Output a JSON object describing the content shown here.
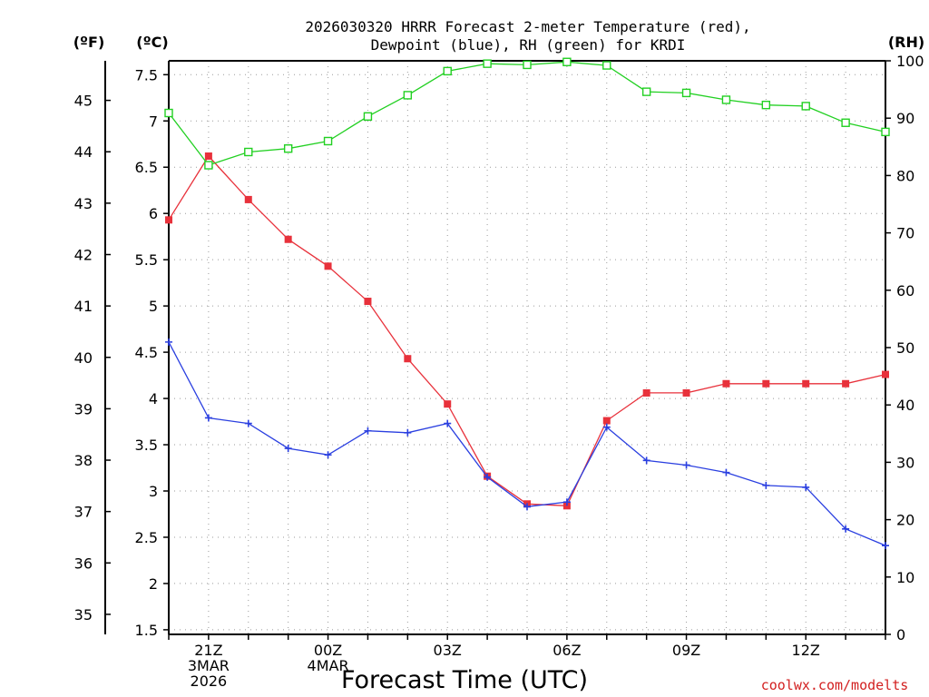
{
  "title": {
    "line1": "2026030320 HRRR Forecast 2-meter Temperature (red),",
    "line2": "Dewpoint (blue), RH (green) for KRDI"
  },
  "units": {
    "f": "(ºF)",
    "c": "(ºC)",
    "rh": "(RH)"
  },
  "credit": "coolwx.com/modelts",
  "colors": {
    "temperature": "#e8313b",
    "dewpoint": "#2a3fe0",
    "rh": "#22d022"
  },
  "chart_data": {
    "type": "line",
    "title": "2026030320 HRRR Forecast 2-meter Temperature (red), Dewpoint (blue), RH (green) for KRDI",
    "xlabel": "Forecast Time (UTC)",
    "ylabel_left_c": "(ºC)",
    "ylabel_left_f": "(ºF)",
    "ylabel_right": "(RH)",
    "ylim_c": [
      1.45,
      7.65
    ],
    "ylim_rh": [
      0,
      100
    ],
    "x_range_hours": [
      0,
      18
    ],
    "x_ticks": [
      {
        "hour": 1,
        "lines": [
          "21Z",
          "3MAR",
          "2026"
        ]
      },
      {
        "hour": 4,
        "lines": [
          "00Z",
          "4MAR"
        ]
      },
      {
        "hour": 7,
        "lines": [
          "03Z"
        ]
      },
      {
        "hour": 10,
        "lines": [
          "06Z"
        ]
      },
      {
        "hour": 13,
        "lines": [
          "09Z"
        ]
      },
      {
        "hour": 16,
        "lines": [
          "12Z"
        ]
      }
    ],
    "y_ticks_c": [
      1.5,
      2,
      2.5,
      3,
      3.5,
      4,
      4.5,
      5,
      5.5,
      6,
      6.5,
      7,
      7.5
    ],
    "y_ticks_f": [
      35,
      36,
      37,
      38,
      39,
      40,
      41,
      42,
      43,
      44,
      45
    ],
    "y_ticks_rh": [
      0,
      10,
      20,
      30,
      40,
      50,
      60,
      70,
      80,
      90,
      100
    ],
    "x": [
      0,
      1,
      2,
      3,
      4,
      5,
      6,
      7,
      8,
      9,
      10,
      11,
      12,
      13,
      14,
      15,
      16,
      17,
      18
    ],
    "series": [
      {
        "name": "Temperature",
        "axis": "c",
        "marker": "filled-square",
        "values": [
          5.93,
          6.62,
          6.15,
          5.72,
          5.43,
          5.05,
          4.43,
          3.94,
          3.16,
          2.86,
          2.84,
          3.76,
          4.06,
          4.06,
          4.16,
          4.16,
          4.16,
          4.16,
          4.26
        ]
      },
      {
        "name": "Dewpoint",
        "axis": "c",
        "marker": "plus",
        "values": [
          4.61,
          3.79,
          3.73,
          3.46,
          3.39,
          3.65,
          3.63,
          3.73,
          3.15,
          2.83,
          2.88,
          3.69,
          3.33,
          3.28,
          3.2,
          3.06,
          3.04,
          2.59,
          2.41
        ]
      },
      {
        "name": "RH",
        "axis": "rh",
        "marker": "open-square",
        "values": [
          90.9,
          81.8,
          84.1,
          84.7,
          86.0,
          90.3,
          94.0,
          98.2,
          99.5,
          99.3,
          99.8,
          99.2,
          94.6,
          94.4,
          93.2,
          92.3,
          92.1,
          89.2,
          87.6
        ]
      }
    ]
  }
}
